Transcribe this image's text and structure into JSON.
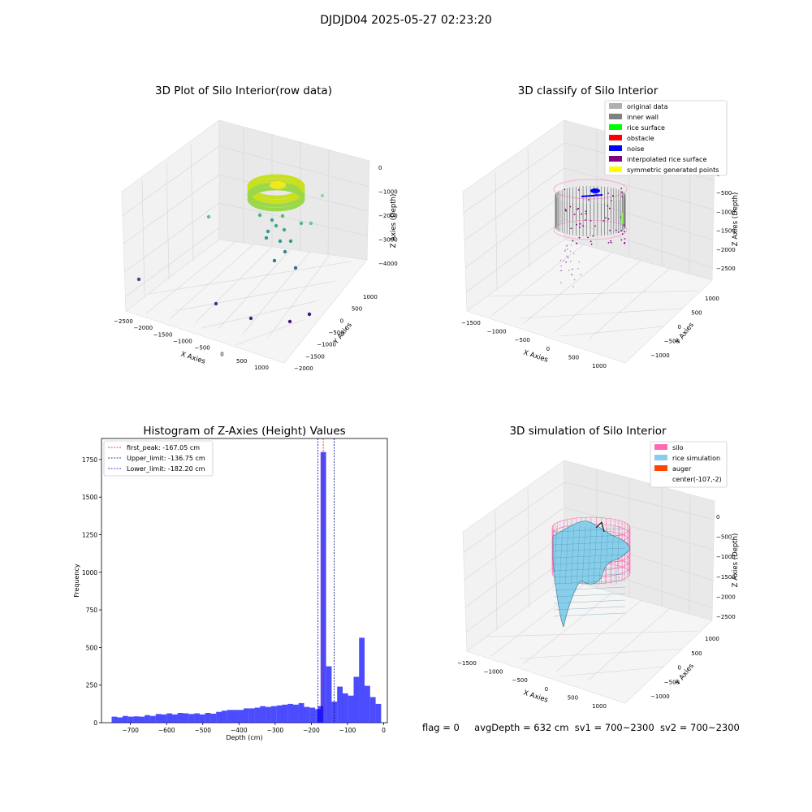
{
  "suptitle": "DJDJD04 2025-05-27 02:23:20",
  "panel_raw": {
    "title": "3D Plot of Silo Interior(row data)",
    "xlabel": "X Axies",
    "ylabel": "Y Axies",
    "zlabel": "Z Axies (Depth)",
    "x_ticks": [
      "−2500",
      "−2000",
      "−1500",
      "−1000",
      "−500",
      "0",
      "500",
      "1000"
    ],
    "y_ticks": [
      "1000",
      "500",
      "0",
      "−500",
      "−1000",
      "−1500",
      "−2000"
    ],
    "z_ticks": [
      "0",
      "−1000",
      "−2000",
      "−3000",
      "−4000"
    ]
  },
  "panel_classify": {
    "title": "3D classify of Silo Interior",
    "xlabel": "X Axies",
    "ylabel": "Y Axies",
    "zlabel": "Z Axies (Depth)",
    "x_ticks": [
      "−1500",
      "−1000",
      "−500",
      "0",
      "500",
      "1000"
    ],
    "y_ticks": [
      "1000",
      "500",
      "0",
      "−500",
      "−1000"
    ],
    "z_ticks": [
      "0",
      "−500",
      "−1000",
      "−1500",
      "−2000",
      "−2500"
    ],
    "legend": [
      {
        "label": "original data",
        "color": "#b0b0b0"
      },
      {
        "label": "inner wall",
        "color": "#808080"
      },
      {
        "label": "rice surface",
        "color": "#00ff00"
      },
      {
        "label": "obstacle",
        "color": "#ff0000"
      },
      {
        "label": "noise",
        "color": "#0000ff"
      },
      {
        "label": "interpolated rice surface",
        "color": "#800080"
      },
      {
        "label": "symmetric generated points",
        "color": "#ffff00"
      }
    ]
  },
  "panel_sim": {
    "title": "3D simulation of Silo Interior",
    "xlabel": "X Axies",
    "ylabel": "Y Axies",
    "zlabel": "Z Axies (Depth)",
    "x_ticks": [
      "−1500",
      "−1000",
      "−500",
      "0",
      "500",
      "1000"
    ],
    "y_ticks": [
      "1000",
      "500",
      "0",
      "−500",
      "−1000"
    ],
    "z_ticks": [
      "0",
      "−500",
      "−1000",
      "−1500",
      "−2000",
      "−2500"
    ],
    "legend": [
      {
        "label": "silo",
        "color": "#ff69b4"
      },
      {
        "label": "rice simulation",
        "color": "#87ceeb"
      },
      {
        "label": "auger",
        "color": "#ff4500"
      },
      {
        "label": "center(-107,-2)",
        "color": ""
      }
    ]
  },
  "chart_data": {
    "type": "bar",
    "title": "Histogram of Z-Axies (Height) Values",
    "xlabel": "Depth (cm)",
    "ylabel": "Frequency",
    "xlim": [
      -780,
      10
    ],
    "ylim": [
      0,
      1890
    ],
    "x_ticks": [
      -700,
      -600,
      -500,
      -400,
      -300,
      -200,
      -100,
      0
    ],
    "x_tick_labels": [
      "−700",
      "−600",
      "−500",
      "−400",
      "−300",
      "−200",
      "−100",
      "0"
    ],
    "y_ticks": [
      0,
      250,
      500,
      750,
      1000,
      1250,
      1500,
      1750
    ],
    "y_tick_labels": [
      "0",
      "250",
      "500",
      "750",
      "1000",
      "1250",
      "1500",
      "1750"
    ],
    "bar_color": "#0000ff",
    "bin_width": 15.2,
    "bins": [
      {
        "x": -752,
        "count": 40
      },
      {
        "x": -736.8,
        "count": 35
      },
      {
        "x": -721.6,
        "count": 45
      },
      {
        "x": -706.4,
        "count": 40
      },
      {
        "x": -691.2,
        "count": 42
      },
      {
        "x": -676,
        "count": 40
      },
      {
        "x": -660.8,
        "count": 50
      },
      {
        "x": -645.6,
        "count": 45
      },
      {
        "x": -630.4,
        "count": 58
      },
      {
        "x": -615.2,
        "count": 55
      },
      {
        "x": -600,
        "count": 62
      },
      {
        "x": -584.8,
        "count": 55
      },
      {
        "x": -569.6,
        "count": 65
      },
      {
        "x": -554.4,
        "count": 62
      },
      {
        "x": -539.2,
        "count": 58
      },
      {
        "x": -524,
        "count": 62
      },
      {
        "x": -508.8,
        "count": 55
      },
      {
        "x": -493.6,
        "count": 65
      },
      {
        "x": -478.4,
        "count": 60
      },
      {
        "x": -463.2,
        "count": 72
      },
      {
        "x": -448,
        "count": 80
      },
      {
        "x": -432.8,
        "count": 85
      },
      {
        "x": -417.6,
        "count": 85
      },
      {
        "x": -402.4,
        "count": 85
      },
      {
        "x": -387.2,
        "count": 95
      },
      {
        "x": -372,
        "count": 95
      },
      {
        "x": -356.8,
        "count": 100
      },
      {
        "x": -341.6,
        "count": 110
      },
      {
        "x": -326.4,
        "count": 105
      },
      {
        "x": -311.2,
        "count": 110
      },
      {
        "x": -296,
        "count": 115
      },
      {
        "x": -280.8,
        "count": 120
      },
      {
        "x": -265.6,
        "count": 125
      },
      {
        "x": -250.4,
        "count": 120
      },
      {
        "x": -235.2,
        "count": 130
      },
      {
        "x": -220,
        "count": 105
      },
      {
        "x": -204.8,
        "count": 100
      },
      {
        "x": -189.6,
        "count": 90
      },
      {
        "x": -182.2,
        "count": 110
      },
      {
        "x": -174.4,
        "count": 1800
      },
      {
        "x": -159.2,
        "count": 375
      },
      {
        "x": -144,
        "count": 140
      },
      {
        "x": -128.8,
        "count": 240
      },
      {
        "x": -113.6,
        "count": 195
      },
      {
        "x": -98.4,
        "count": 180
      },
      {
        "x": -83.2,
        "count": 305
      },
      {
        "x": -68,
        "count": 565
      },
      {
        "x": -52.8,
        "count": 245
      },
      {
        "x": -37.6,
        "count": 170
      },
      {
        "x": -22.4,
        "count": 125
      }
    ],
    "vlines": [
      {
        "x": -167.05,
        "label": "first_peak: -167.05 cm",
        "color": "#ff0000"
      },
      {
        "x": -136.75,
        "label": "Upper_limit: -136.75 cm",
        "color": "#00008b"
      },
      {
        "x": -182.2,
        "label": "Lower_limit: -182.20 cm",
        "color": "#0000cd"
      }
    ],
    "legend_position": "upper-left"
  },
  "footer": {
    "flag": "flag = 0",
    "avg": "avgDepth = 632 cm",
    "sv1": "sv1 = 700~2300",
    "sv2": "sv2 = 700~2300"
  }
}
